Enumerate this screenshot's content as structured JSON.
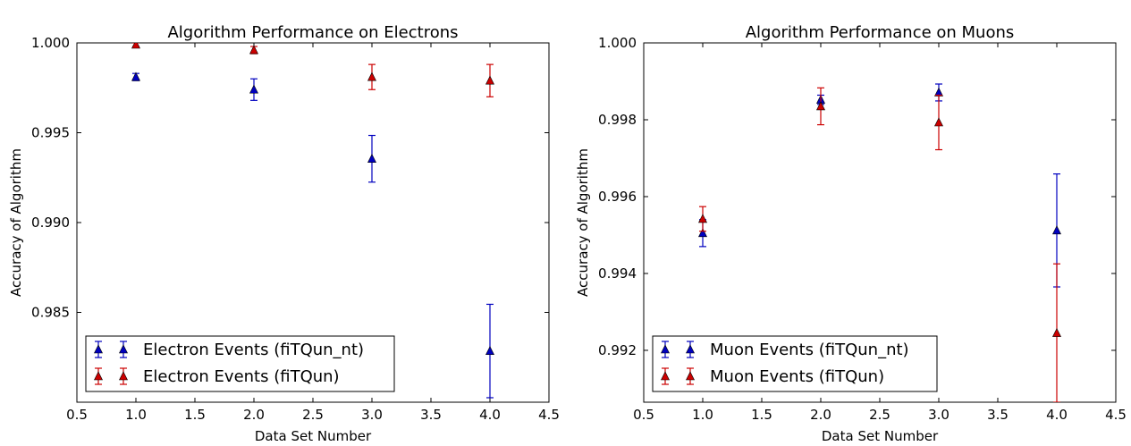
{
  "chart_data": [
    {
      "type": "scatter",
      "title": "Algorithm Performance on Electrons",
      "xlabel": "Data Set Number",
      "ylabel": "Accuracy of Algorithm",
      "xlim": [
        0.5,
        4.5
      ],
      "ylim": [
        0.98,
        1.0
      ],
      "xticks": [
        "0.5",
        "1.0",
        "1.5",
        "2.0",
        "2.5",
        "3.0",
        "3.5",
        "4.0",
        "4.5"
      ],
      "yticks": [
        "0.985",
        "0.990",
        "0.995",
        "1.000"
      ],
      "grid": false,
      "legend_position": "lower-left",
      "series": [
        {
          "name": "Electron Events (fiTQun_nt)",
          "color": "#0000bf",
          "marker": "triangle",
          "x": [
            1.0,
            2.0,
            3.0,
            4.0
          ],
          "y": [
            0.9981,
            0.9974,
            0.99355,
            0.98285
          ],
          "yerr": [
            0.0002,
            0.0006,
            0.0013,
            0.0026
          ]
        },
        {
          "name": "Electron Events (fiTQun)",
          "color": "#cc0000",
          "marker": "triangle",
          "x": [
            1.0,
            2.0,
            3.0,
            4.0
          ],
          "y": [
            0.9999,
            0.9996,
            0.9981,
            0.9979
          ],
          "yerr": [
            0.0001,
            0.0002,
            0.0007,
            0.0009
          ]
        }
      ]
    },
    {
      "type": "scatter",
      "title": "Algorithm Performance on Muons",
      "xlabel": "Data Set Number",
      "ylabel": "Accuracy of Algorithm",
      "xlim": [
        0.5,
        4.5
      ],
      "ylim": [
        0.99065,
        1.0
      ],
      "xticks": [
        "0.5",
        "1.0",
        "1.5",
        "2.0",
        "2.5",
        "3.0",
        "3.5",
        "4.0",
        "4.5"
      ],
      "yticks": [
        "0.992",
        "0.994",
        "0.996",
        "0.998",
        "1.000"
      ],
      "grid": false,
      "legend_position": "lower-left",
      "series": [
        {
          "name": "Muon Events (fiTQun_nt)",
          "color": "#0000bf",
          "marker": "triangle",
          "x": [
            1.0,
            2.0,
            3.0,
            4.0
          ],
          "y": [
            0.99505,
            0.99852,
            0.99871,
            0.99512
          ],
          "yerr": [
            0.00035,
            0.00012,
            0.00022,
            0.00147
          ]
        },
        {
          "name": "Muon Events (fiTQun)",
          "color": "#cc0000",
          "marker": "triangle",
          "x": [
            1.0,
            2.0,
            3.0,
            4.0
          ],
          "y": [
            0.99542,
            0.99835,
            0.99793,
            0.99245
          ],
          "yerr": [
            0.00032,
            0.00048,
            0.00071,
            0.0018
          ]
        }
      ]
    }
  ]
}
